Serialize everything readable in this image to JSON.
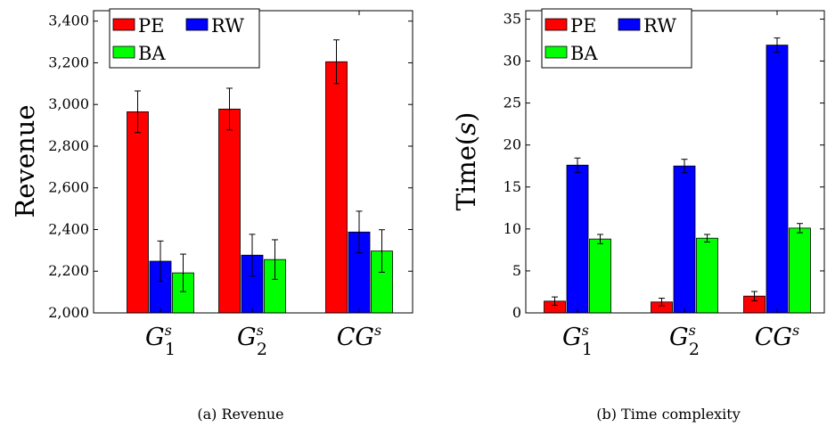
{
  "colors": {
    "PE": "#ff0000",
    "RW": "#0000ff",
    "BA": "#00ff00"
  },
  "legend": [
    "PE",
    "RW",
    "BA"
  ],
  "chart_data": [
    {
      "type": "bar",
      "caption": "(a) Revenue",
      "ylabel": "Revenue",
      "ylim": [
        2000,
        3450
      ],
      "yticks": [
        2000,
        2200,
        2400,
        2600,
        2800,
        3000,
        3200,
        3400
      ],
      "ytick_labels": [
        "2,000",
        "2,200",
        "2,400",
        "2,600",
        "2,800",
        "3,000",
        "3,200",
        "3,400"
      ],
      "categories": [
        {
          "base": "G",
          "sup": "s",
          "sub": "1"
        },
        {
          "base": "G",
          "sup": "s",
          "sub": "2"
        },
        {
          "base": "CG",
          "sup": "s",
          "sub": ""
        }
      ],
      "series": [
        {
          "name": "PE",
          "values": [
            2965,
            2978,
            3205
          ],
          "errors": [
            100,
            100,
            105
          ]
        },
        {
          "name": "RW",
          "values": [
            2248,
            2277,
            2388
          ],
          "errors": [
            97,
            100,
            100
          ]
        },
        {
          "name": "BA",
          "values": [
            2192,
            2256,
            2297
          ],
          "errors": [
            90,
            95,
            102
          ]
        }
      ]
    },
    {
      "type": "bar",
      "caption": "(b) Time complexity",
      "ylabel": "Time(s)",
      "ylabel_main": "Time(",
      "ylabel_var": "s",
      "ylabel_end": ")",
      "ylim": [
        0,
        36
      ],
      "yticks": [
        0,
        5,
        10,
        15,
        20,
        25,
        30,
        35
      ],
      "ytick_labels": [
        "0",
        "5",
        "10",
        "15",
        "20",
        "25",
        "30",
        "35"
      ],
      "categories": [
        {
          "base": "G",
          "sup": "s",
          "sub": "1"
        },
        {
          "base": "G",
          "sup": "s",
          "sub": "2"
        },
        {
          "base": "CG",
          "sup": "s",
          "sub": ""
        }
      ],
      "series": [
        {
          "name": "PE",
          "values": [
            1.4,
            1.3,
            2.0
          ],
          "errors": [
            0.5,
            0.45,
            0.55
          ]
        },
        {
          "name": "RW",
          "values": [
            17.6,
            17.5,
            31.9
          ],
          "errors": [
            0.85,
            0.8,
            0.85
          ]
        },
        {
          "name": "BA",
          "values": [
            8.8,
            8.9,
            10.1
          ],
          "errors": [
            0.55,
            0.45,
            0.55
          ]
        }
      ]
    }
  ]
}
